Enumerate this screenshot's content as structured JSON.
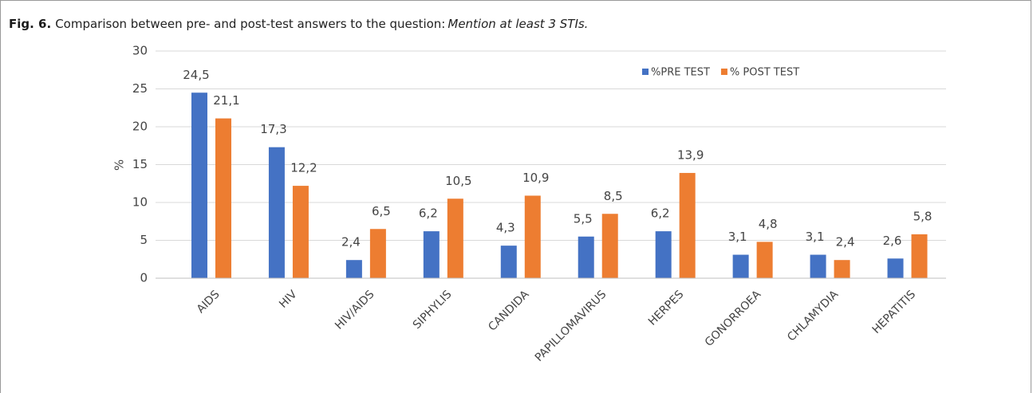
{
  "caption": {
    "label": "Fig. 6.",
    "text": "Comparison between pre- and post-test answers to the question:",
    "question": "Mention at least 3 STIs."
  },
  "chart_data": {
    "type": "bar",
    "ylabel": "%",
    "categories": [
      "AIDS",
      "HIV",
      "HIV/AIDS",
      "SIPHYLIS",
      "CANDIDA",
      "PAPILLOMAVIRUS",
      "HERPES",
      "GONORROEA",
      "CHLAMYDIA",
      "HEPATITIS"
    ],
    "series": [
      {
        "name": "%PRE TEST",
        "color": "#4472c4",
        "values": [
          24.5,
          17.3,
          2.4,
          6.2,
          4.3,
          5.5,
          6.2,
          3.1,
          3.1,
          2.6
        ],
        "value_labels": [
          "24,5",
          "17,3",
          "2,4",
          "6,2",
          "4,3",
          "5,5",
          "6,2",
          "3,1",
          "3,1",
          "2,6"
        ]
      },
      {
        "name": "% POST TEST",
        "color": "#ed7d31",
        "values": [
          21.1,
          12.2,
          6.5,
          10.5,
          10.9,
          8.5,
          13.9,
          4.8,
          2.4,
          5.8
        ],
        "value_labels": [
          "21,1",
          "12,2",
          "6,5",
          "10,5",
          "10,9",
          "8,5",
          "13,9",
          "4,8",
          "2,4",
          "5,8"
        ]
      }
    ],
    "ylim": [
      0,
      30
    ],
    "yticks": [
      0,
      5,
      10,
      15,
      20,
      25,
      30
    ],
    "grid": true,
    "legend": "top-right"
  }
}
